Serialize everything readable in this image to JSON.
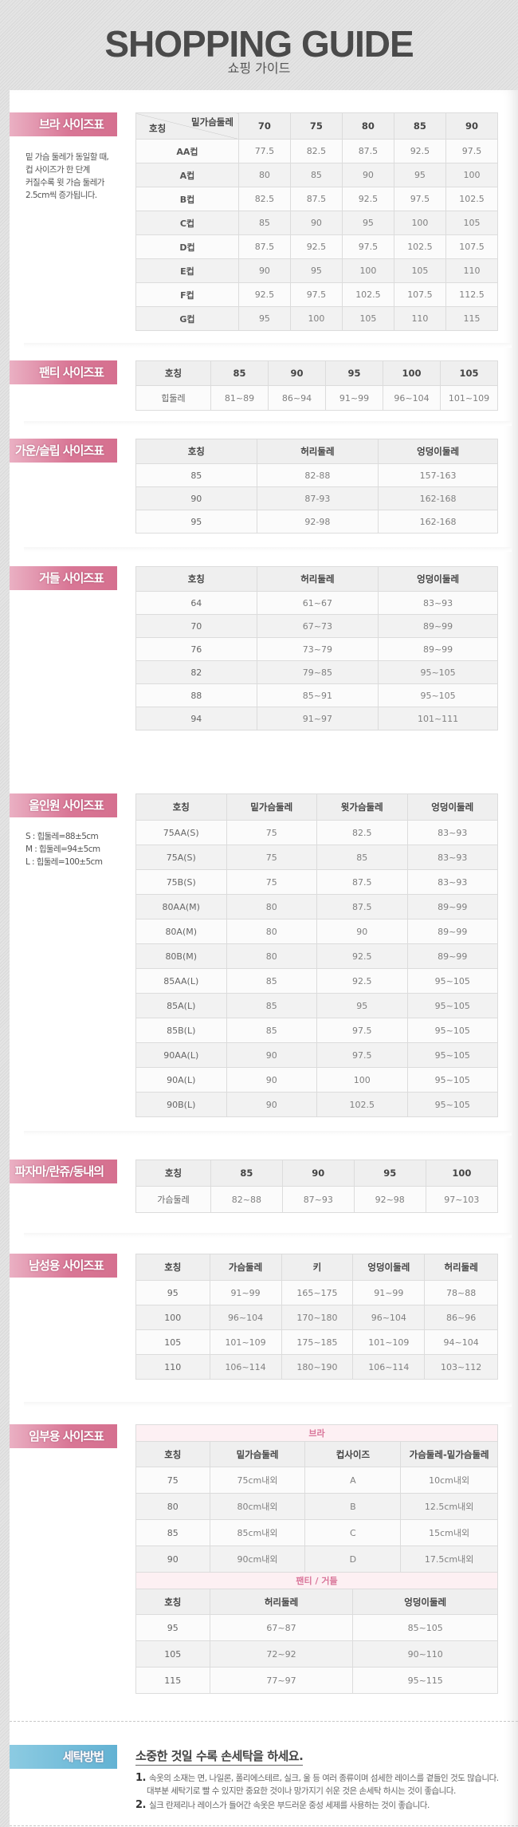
{
  "header": {
    "title": "SHOPPING GUIDE",
    "subtitle": "쇼핑 가이드"
  },
  "colors": {
    "section_label": "#d97796",
    "wash_label": "#62b2d3",
    "header_cell": "#efefef",
    "sub_header_text": "#d9769a"
  },
  "bra": {
    "label": "브라 사이즈표",
    "note": [
      "밑 가슴 둘레가 동일할 때,",
      "컵 사이즈가 한 단계",
      "커질수록 윗 가슴 둘레가",
      "2.5cm씩 증가됩니다."
    ],
    "header_top": "밑가슴둘레",
    "header_left": "호칭",
    "columns": [
      "70",
      "75",
      "80",
      "85",
      "90"
    ],
    "rows": [
      [
        "AA컵",
        "77.5",
        "82.5",
        "87.5",
        "92.5",
        "97.5"
      ],
      [
        "A컵",
        "80",
        "85",
        "90",
        "95",
        "100"
      ],
      [
        "B컵",
        "82.5",
        "87.5",
        "92.5",
        "97.5",
        "102.5"
      ],
      [
        "C컵",
        "85",
        "90",
        "95",
        "100",
        "105"
      ],
      [
        "D컵",
        "87.5",
        "92.5",
        "97.5",
        "102.5",
        "107.5"
      ],
      [
        "E컵",
        "90",
        "95",
        "100",
        "105",
        "110"
      ],
      [
        "F컵",
        "92.5",
        "97.5",
        "102.5",
        "107.5",
        "112.5"
      ],
      [
        "G컵",
        "95",
        "100",
        "105",
        "110",
        "115"
      ]
    ]
  },
  "panty": {
    "label": "팬티 사이즈표",
    "header": [
      "호칭",
      "85",
      "90",
      "95",
      "100",
      "105"
    ],
    "rows": [
      [
        "힙둘레",
        "81~89",
        "86~94",
        "91~99",
        "96~104",
        "101~109"
      ]
    ]
  },
  "gown": {
    "label": "가운/슬립 사이즈표",
    "header": [
      "호칭",
      "허리둘레",
      "엉덩이둘레"
    ],
    "rows": [
      [
        "85",
        "82-88",
        "157-163"
      ],
      [
        "90",
        "87-93",
        "162-168"
      ],
      [
        "95",
        "92-98",
        "162-168"
      ]
    ]
  },
  "girdle": {
    "label": "거들 사이즈표",
    "header": [
      "호칭",
      "허리둘레",
      "엉덩이둘레"
    ],
    "rows": [
      [
        "64",
        "61~67",
        "83~93"
      ],
      [
        "70",
        "67~73",
        "89~99"
      ],
      [
        "76",
        "73~79",
        "89~99"
      ],
      [
        "82",
        "79~85",
        "95~105"
      ],
      [
        "88",
        "85~91",
        "95~105"
      ],
      [
        "94",
        "91~97",
        "101~111"
      ]
    ]
  },
  "allinone": {
    "label": "올인원 사이즈표",
    "note": [
      "S : 힙둘레=88±5cm",
      "M : 힙둘레=94±5cm",
      "L : 힙둘레=100±5cm"
    ],
    "header": [
      "호칭",
      "밑가슴둘레",
      "윗가슴둘레",
      "엉덩이둘레"
    ],
    "rows": [
      [
        "75AA(S)",
        "75",
        "82.5",
        "83~93"
      ],
      [
        "75A(S)",
        "75",
        "85",
        "83~93"
      ],
      [
        "75B(S)",
        "75",
        "87.5",
        "83~93"
      ],
      [
        "80AA(M)",
        "80",
        "87.5",
        "89~99"
      ],
      [
        "80A(M)",
        "80",
        "90",
        "89~99"
      ],
      [
        "80B(M)",
        "80",
        "92.5",
        "89~99"
      ],
      [
        "85AA(L)",
        "85",
        "92.5",
        "95~105"
      ],
      [
        "85A(L)",
        "85",
        "95",
        "95~105"
      ],
      [
        "85B(L)",
        "85",
        "97.5",
        "95~105"
      ],
      [
        "90AA(L)",
        "90",
        "97.5",
        "95~105"
      ],
      [
        "90A(L)",
        "90",
        "100",
        "95~105"
      ],
      [
        "90B(L)",
        "90",
        "102.5",
        "95~105"
      ]
    ]
  },
  "pajama": {
    "label": "파자마/란쥬/동내의",
    "header": [
      "호칭",
      "85",
      "90",
      "95",
      "100"
    ],
    "rows": [
      [
        "가슴둘레",
        "82~88",
        "87~93",
        "92~98",
        "97~103"
      ]
    ]
  },
  "men": {
    "label": "남성용 사이즈표",
    "header": [
      "호칭",
      "가슴둘레",
      "키",
      "엉덩이둘레",
      "허리둘레"
    ],
    "rows": [
      [
        "95",
        "91~99",
        "165~175",
        "91~99",
        "78~88"
      ],
      [
        "100",
        "96~104",
        "170~180",
        "96~104",
        "86~96"
      ],
      [
        "105",
        "101~109",
        "175~185",
        "101~109",
        "94~104"
      ],
      [
        "110",
        "106~114",
        "180~190",
        "106~114",
        "103~112"
      ]
    ]
  },
  "maternity": {
    "label": "임부용 사이즈표",
    "bra_title": "브라",
    "bra_header": [
      "호칭",
      "밑가슴둘레",
      "컵사이즈",
      "가슴둘레-밑가슴둘레"
    ],
    "bra_rows": [
      [
        "75",
        "75cm내외",
        "A",
        "10cm내외"
      ],
      [
        "80",
        "80cm내외",
        "B",
        "12.5cm내외"
      ],
      [
        "85",
        "85cm내외",
        "C",
        "15cm내외"
      ],
      [
        "90",
        "90cm내외",
        "D",
        "17.5cm내외"
      ]
    ],
    "panty_title": "팬티 / 거들",
    "panty_header": [
      "호칭",
      "허리둘레",
      "엉덩이둘레"
    ],
    "panty_rows": [
      [
        "95",
        "67~87",
        "85~105"
      ],
      [
        "105",
        "72~92",
        "90~110"
      ],
      [
        "115",
        "77~97",
        "95~115"
      ]
    ]
  },
  "washing": {
    "label": "세탁방법",
    "heading": "소중한 것일 수록 손세탁을 하세요.",
    "items": [
      {
        "num": "1.",
        "lines": [
          "속옷의 소재는 면, 나일론, 폴리에스테르, 실크, 울 등 여러 종류이며 섬세한 레이스를 곁들인 것도 많습니다.",
          "대부분 세탁기로 빨 수 있지만 중요한 것이나 망가지기 쉬운 것은 손세탁 하시는 것이 좋습니다."
        ]
      },
      {
        "num": "2.",
        "lines": [
          "실크 란제리나 레이스가 들어간 속옷은 부드러운 중성 세제를 사용하는 것이 좋습니다."
        ]
      }
    ]
  }
}
